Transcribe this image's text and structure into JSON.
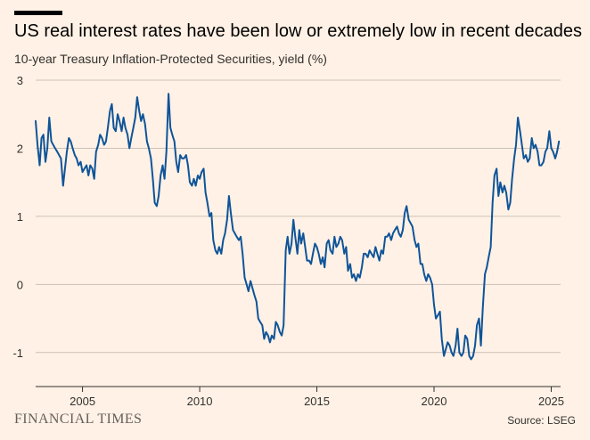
{
  "header": {
    "title": "US real interest rates have been low or extremely low in recent decades",
    "subtitle": "10-year Treasury Inflation-Protected Securities, yield (%)"
  },
  "footer": {
    "brand": "FINANCIAL TIMES",
    "source": "Source: LSEG"
  },
  "colors": {
    "background": "#fff1e5",
    "line": "#0f5499",
    "grid": "#ccc1b7",
    "axis": "#33302e"
  },
  "chart_data": {
    "type": "line",
    "title": "US real interest rates have been low or extremely low in recent decades",
    "subtitle": "10-year Treasury Inflation-Protected Securities, yield (%)",
    "xlabel": "",
    "ylabel": "",
    "xlim": [
      2003.0,
      2025.4
    ],
    "ylim": [
      -1.5,
      3
    ],
    "yticks": [
      3,
      2,
      1,
      0,
      -1
    ],
    "ytick_labels": [
      "3",
      "2",
      "1",
      "0",
      "-1"
    ],
    "xticks": [
      2005,
      2010,
      2015,
      2020,
      2025
    ],
    "xtick_labels": [
      "2005",
      "2010",
      "2015",
      "2020",
      "2025"
    ],
    "grid": "horizontal",
    "legend": "none",
    "series": [
      {
        "x": [
          2003.0,
          2003.08,
          2003.17,
          2003.25,
          2003.33,
          2003.42,
          2003.5,
          2003.58,
          2003.67,
          2003.75,
          2003.83,
          2003.92,
          2004.0,
          2004.08,
          2004.17,
          2004.25,
          2004.33,
          2004.42,
          2004.5,
          2004.58,
          2004.67,
          2004.75,
          2004.83,
          2004.92,
          2005.0,
          2005.08,
          2005.17,
          2005.25,
          2005.33,
          2005.42,
          2005.5,
          2005.58,
          2005.67,
          2005.75,
          2005.83,
          2005.92,
          2006.0,
          2006.08,
          2006.17,
          2006.25,
          2006.33,
          2006.42,
          2006.5,
          2006.58,
          2006.67,
          2006.75,
          2006.83,
          2006.92,
          2007.0,
          2007.08,
          2007.17,
          2007.25,
          2007.33,
          2007.42,
          2007.5,
          2007.58,
          2007.67,
          2007.75,
          2007.83,
          2007.92,
          2008.0,
          2008.08,
          2008.17,
          2008.25,
          2008.33,
          2008.42,
          2008.5,
          2008.58,
          2008.67,
          2008.75,
          2008.83,
          2008.92,
          2009.0,
          2009.08,
          2009.17,
          2009.25,
          2009.33,
          2009.42,
          2009.5,
          2009.58,
          2009.67,
          2009.75,
          2009.83,
          2009.92,
          2010.0,
          2010.08,
          2010.17,
          2010.25,
          2010.33,
          2010.42,
          2010.5,
          2010.58,
          2010.67,
          2010.75,
          2010.83,
          2010.92,
          2011.0,
          2011.08,
          2011.17,
          2011.25,
          2011.33,
          2011.42,
          2011.5,
          2011.58,
          2011.67,
          2011.75,
          2011.83,
          2011.92,
          2012.0,
          2012.08,
          2012.17,
          2012.25,
          2012.33,
          2012.42,
          2012.5,
          2012.58,
          2012.67,
          2012.75,
          2012.83,
          2012.92,
          2013.0,
          2013.08,
          2013.17,
          2013.25,
          2013.33,
          2013.42,
          2013.5,
          2013.58,
          2013.67,
          2013.75,
          2013.83,
          2013.92,
          2014.0,
          2014.08,
          2014.17,
          2014.25,
          2014.33,
          2014.42,
          2014.5,
          2014.58,
          2014.67,
          2014.75,
          2014.83,
          2014.92,
          2015.0,
          2015.08,
          2015.17,
          2015.25,
          2015.33,
          2015.42,
          2015.5,
          2015.58,
          2015.67,
          2015.75,
          2015.83,
          2015.92,
          2016.0,
          2016.08,
          2016.17,
          2016.25,
          2016.33,
          2016.42,
          2016.5,
          2016.58,
          2016.67,
          2016.75,
          2016.83,
          2016.92,
          2017.0,
          2017.08,
          2017.17,
          2017.25,
          2017.33,
          2017.42,
          2017.5,
          2017.58,
          2017.67,
          2017.75,
          2017.83,
          2017.92,
          2018.0,
          2018.08,
          2018.17,
          2018.25,
          2018.33,
          2018.42,
          2018.5,
          2018.58,
          2018.67,
          2018.75,
          2018.83,
          2018.92,
          2019.0,
          2019.08,
          2019.17,
          2019.25,
          2019.33,
          2019.42,
          2019.5,
          2019.58,
          2019.67,
          2019.75,
          2019.83,
          2019.92,
          2020.0,
          2020.08,
          2020.17,
          2020.25,
          2020.33,
          2020.42,
          2020.5,
          2020.58,
          2020.67,
          2020.75,
          2020.83,
          2020.92,
          2021.0,
          2021.08,
          2021.17,
          2021.25,
          2021.33,
          2021.42,
          2021.5,
          2021.58,
          2021.67,
          2021.75,
          2021.83,
          2021.92,
          2022.0,
          2022.08,
          2022.17,
          2022.25,
          2022.33,
          2022.42,
          2022.5,
          2022.58,
          2022.67,
          2022.75,
          2022.83,
          2022.92,
          2023.0,
          2023.08,
          2023.17,
          2023.25,
          2023.33,
          2023.42,
          2023.5,
          2023.58,
          2023.67,
          2023.75,
          2023.83,
          2023.92,
          2024.0,
          2024.08,
          2024.17,
          2024.25,
          2024.33,
          2024.42,
          2024.5,
          2024.58,
          2024.67,
          2024.75,
          2024.83,
          2024.92,
          2025.0,
          2025.08,
          2025.17,
          2025.25,
          2025.33
        ],
        "values": [
          2.4,
          2.05,
          1.75,
          2.15,
          2.2,
          1.8,
          2.0,
          2.45,
          2.1,
          2.05,
          2.0,
          1.95,
          1.9,
          1.85,
          1.45,
          1.7,
          1.95,
          2.15,
          2.1,
          2.0,
          1.9,
          1.85,
          1.75,
          1.8,
          1.65,
          1.7,
          1.75,
          1.6,
          1.75,
          1.7,
          1.55,
          1.95,
          2.05,
          2.2,
          2.15,
          2.05,
          2.1,
          2.3,
          2.55,
          2.65,
          2.3,
          2.25,
          2.5,
          2.4,
          2.25,
          2.45,
          2.3,
          2.2,
          2.0,
          2.15,
          2.3,
          2.45,
          2.75,
          2.55,
          2.4,
          2.5,
          2.35,
          2.1,
          2.0,
          1.85,
          1.55,
          1.2,
          1.15,
          1.3,
          1.6,
          1.75,
          1.55,
          1.95,
          2.8,
          2.3,
          2.2,
          2.1,
          1.8,
          1.65,
          1.9,
          1.85,
          1.85,
          1.9,
          1.75,
          1.5,
          1.45,
          1.55,
          1.45,
          1.6,
          1.55,
          1.65,
          1.7,
          1.35,
          1.2,
          1.0,
          1.05,
          0.65,
          0.5,
          0.45,
          0.55,
          0.45,
          0.65,
          0.75,
          0.95,
          1.3,
          1.05,
          0.8,
          0.75,
          0.7,
          0.65,
          0.7,
          0.45,
          0.1,
          0.0,
          -0.1,
          0.05,
          -0.05,
          -0.15,
          -0.25,
          -0.5,
          -0.55,
          -0.6,
          -0.8,
          -0.7,
          -0.75,
          -0.85,
          -0.75,
          -0.8,
          -0.55,
          -0.6,
          -0.7,
          -0.75,
          -0.6,
          0.5,
          0.7,
          0.45,
          0.6,
          0.95,
          0.7,
          0.45,
          0.8,
          0.6,
          0.75,
          0.55,
          0.35,
          0.35,
          0.3,
          0.45,
          0.6,
          0.55,
          0.45,
          0.3,
          0.4,
          0.25,
          0.6,
          0.65,
          0.5,
          0.45,
          0.7,
          0.55,
          0.6,
          0.7,
          0.65,
          0.45,
          0.55,
          0.2,
          0.3,
          0.1,
          0.15,
          0.05,
          0.15,
          0.1,
          0.25,
          0.45,
          0.45,
          0.4,
          0.5,
          0.45,
          0.4,
          0.55,
          0.45,
          0.35,
          0.5,
          0.45,
          0.7,
          0.7,
          0.75,
          0.65,
          0.75,
          0.8,
          0.85,
          0.75,
          0.7,
          0.8,
          1.05,
          1.15,
          0.95,
          0.9,
          0.85,
          0.65,
          0.55,
          0.6,
          0.3,
          0.3,
          0.15,
          0.05,
          0.15,
          0.1,
          0.0,
          -0.3,
          -0.5,
          -0.45,
          -0.4,
          -0.8,
          -1.05,
          -0.95,
          -0.85,
          -0.9,
          -1.0,
          -1.05,
          -0.9,
          -0.65,
          -1.0,
          -1.05,
          -1.0,
          -0.75,
          -0.8,
          -1.05,
          -1.1,
          -1.05,
          -0.9,
          -0.6,
          -0.5,
          -0.9,
          -0.35,
          0.15,
          0.25,
          0.4,
          0.55,
          1.2,
          1.6,
          1.7,
          1.3,
          1.5,
          1.35,
          1.45,
          1.35,
          1.1,
          1.2,
          1.55,
          1.85,
          2.05,
          2.45,
          2.25,
          2.05,
          1.85,
          1.9,
          1.8,
          1.85,
          2.15,
          2.0,
          2.05,
          1.95,
          1.75,
          1.75,
          1.8,
          1.95,
          2.0,
          2.25,
          2.0,
          1.95,
          1.85,
          1.95,
          2.1
        ]
      }
    ]
  }
}
